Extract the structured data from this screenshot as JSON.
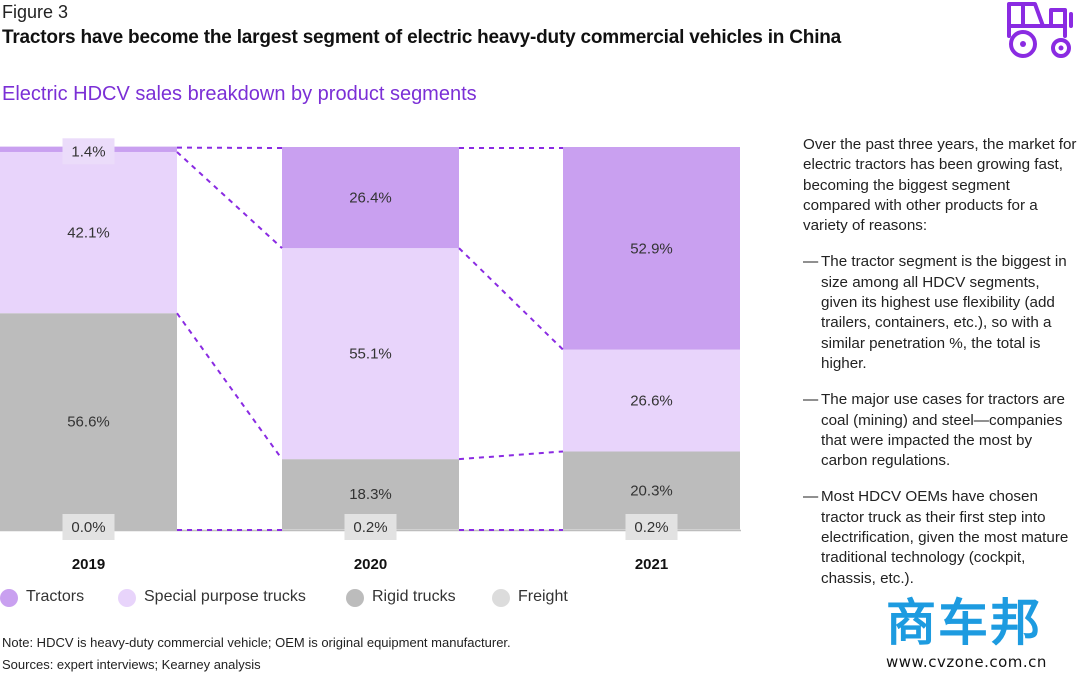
{
  "header": {
    "figure_label": "Figure 3",
    "title": "Tractors have become the largest segment of electric heavy-duty commercial vehicles in China",
    "subtitle": "Electric HDCV sales breakdown by product segments"
  },
  "chart_data": {
    "type": "bar",
    "stacked": true,
    "categories": [
      "2019",
      "2020",
      "2021"
    ],
    "series": [
      {
        "name": "Tractors",
        "values": [
          1.4,
          26.4,
          52.9
        ],
        "color": "#c9a0f0"
      },
      {
        "name": "Special purpose trucks",
        "values": [
          42.1,
          55.1,
          26.6
        ],
        "color": "#e8d4fb"
      },
      {
        "name": "Rigid trucks",
        "values": [
          56.6,
          18.3,
          20.3
        ],
        "color": "#bcbcbc"
      },
      {
        "name": "Freight",
        "values": [
          0.0,
          0.2,
          0.2
        ],
        "color": "#dcdcdc"
      }
    ],
    "labels": [
      [
        "1.4%",
        "26.4%",
        "52.9%"
      ],
      [
        "42.1%",
        "55.1%",
        "26.6%"
      ],
      [
        "56.6%",
        "18.3%",
        "20.3%"
      ],
      [
        "0.0%",
        "0.2%",
        "0.2%"
      ]
    ],
    "ylim": [
      0,
      100
    ],
    "unit": "%",
    "connector_color": "#8a2be2",
    "legend_position": "bottom-left"
  },
  "side_panel": {
    "intro": "Over the past three years, the market for electric tractors has been growing fast, becoming the biggest segment compared with other products for a variety of reasons:",
    "bullets": [
      "The tractor segment is the biggest in size among all HDCV segments, given its highest use flexibility (add trailers, containers, etc.), so with a similar penetration %, the total is higher.",
      "The major use cases for tractors are coal (mining) and steel—companies that were impacted the most by carbon regulations.",
      "Most HDCV OEMs have chosen tractor truck as their first step into electrification, given the most mature traditional technology (cockpit, chassis, etc.)."
    ],
    "dash": "—"
  },
  "footer": {
    "note": "Note: HDCV is heavy-duty commercial vehicle; OEM is original equipment manufacturer.",
    "sources": "Sources: expert interviews; Kearney analysis"
  },
  "watermark": {
    "logo": "商车邦",
    "url": "www.cvzone.com.cn"
  },
  "icons": {
    "header_icon": "tractor-icon"
  }
}
